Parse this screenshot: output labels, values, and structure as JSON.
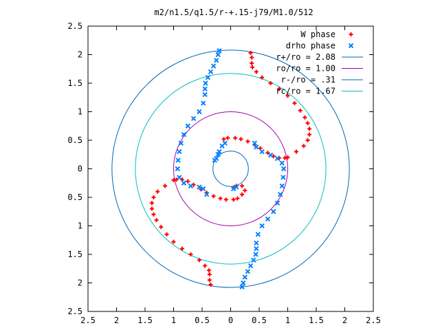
{
  "chart_data": {
    "type": "scatter",
    "title": "m2/n1.5/q1.5/r-+.15-j79/M1.0/512",
    "xlim": [
      -2.5,
      2.5
    ],
    "ylim": [
      -2.5,
      2.5
    ],
    "x_ticks": [
      -2.5,
      -2,
      -1.5,
      -1,
      -0.5,
      0,
      0.5,
      1,
      1.5,
      2,
      2.5
    ],
    "y_ticks": [
      -2.5,
      -2,
      -1.5,
      -1,
      -0.5,
      0,
      0.5,
      1,
      1.5,
      2,
      2.5
    ],
    "x_tick_labels": [
      "2.5",
      "2",
      "1.5",
      "1",
      "0.5",
      "0",
      "0.5",
      "1",
      "1.5",
      "2",
      "2.5"
    ],
    "y_tick_labels": [
      "2.5",
      "2",
      "1.5",
      "1",
      "0.5",
      "0",
      "0.5",
      "1",
      "1.5",
      "2",
      "2.5"
    ],
    "grid": false,
    "legend_position": "top-right",
    "series": [
      {
        "name": "W phase",
        "marker": "plus",
        "color": "#ff0000",
        "points": [
          [
            0.35,
            2.03
          ],
          [
            0.37,
            1.95
          ],
          [
            0.37,
            1.85
          ],
          [
            0.38,
            1.78
          ],
          [
            0.45,
            1.7
          ],
          [
            0.55,
            1.6
          ],
          [
            0.7,
            1.5
          ],
          [
            0.85,
            1.4
          ],
          [
            1.0,
            1.28
          ],
          [
            1.12,
            1.15
          ],
          [
            1.22,
            1.02
          ],
          [
            1.3,
            0.9
          ],
          [
            1.35,
            0.8
          ],
          [
            1.38,
            0.7
          ],
          [
            1.38,
            0.6
          ],
          [
            1.35,
            0.5
          ],
          [
            1.28,
            0.4
          ],
          [
            1.15,
            0.3
          ],
          [
            1.0,
            0.2
          ],
          [
            0.95,
            0.19
          ],
          [
            0.85,
            0.19
          ],
          [
            0.75,
            0.22
          ],
          [
            0.65,
            0.28
          ],
          [
            0.52,
            0.36
          ],
          [
            0.42,
            0.42
          ],
          [
            0.3,
            0.48
          ],
          [
            0.18,
            0.52
          ],
          [
            0.08,
            0.54
          ],
          [
            -0.05,
            0.54
          ],
          [
            -0.12,
            0.52
          ],
          [
            -0.35,
            -2.03
          ],
          [
            -0.37,
            -1.95
          ],
          [
            -0.37,
            -1.85
          ],
          [
            -0.38,
            -1.78
          ],
          [
            -0.45,
            -1.7
          ],
          [
            -0.55,
            -1.6
          ],
          [
            -0.7,
            -1.5
          ],
          [
            -0.85,
            -1.4
          ],
          [
            -1.0,
            -1.28
          ],
          [
            -1.12,
            -1.15
          ],
          [
            -1.22,
            -1.02
          ],
          [
            -1.3,
            -0.9
          ],
          [
            -1.35,
            -0.8
          ],
          [
            -1.38,
            -0.7
          ],
          [
            -1.38,
            -0.6
          ],
          [
            -1.35,
            -0.5
          ],
          [
            -1.28,
            -0.4
          ],
          [
            -1.15,
            -0.3
          ],
          [
            -1.0,
            -0.2
          ],
          [
            -0.95,
            -0.19
          ],
          [
            -0.85,
            -0.19
          ],
          [
            -0.75,
            -0.22
          ],
          [
            -0.65,
            -0.28
          ],
          [
            -0.52,
            -0.36
          ],
          [
            -0.42,
            -0.42
          ],
          [
            -0.3,
            -0.48
          ],
          [
            -0.18,
            -0.52
          ],
          [
            -0.08,
            -0.54
          ],
          [
            0.05,
            -0.54
          ],
          [
            0.12,
            -0.52
          ],
          [
            0.2,
            -0.45
          ],
          [
            0.25,
            -0.38
          ],
          [
            0.2,
            -0.3
          ],
          [
            0.1,
            -0.3
          ],
          [
            0.05,
            -0.33
          ]
        ]
      },
      {
        "name": "drho phase",
        "marker": "cross",
        "color": "#0080ff",
        "points": [
          [
            -0.2,
            2.07
          ],
          [
            -0.22,
            2.0
          ],
          [
            -0.25,
            1.9
          ],
          [
            -0.3,
            1.8
          ],
          [
            -0.35,
            1.7
          ],
          [
            -0.4,
            1.6
          ],
          [
            -0.44,
            1.5
          ],
          [
            -0.45,
            1.4
          ],
          [
            -0.45,
            1.3
          ],
          [
            -0.48,
            1.15
          ],
          [
            -0.55,
            1.0
          ],
          [
            -0.65,
            0.88
          ],
          [
            -0.75,
            0.75
          ],
          [
            -0.82,
            0.6
          ],
          [
            -0.87,
            0.45
          ],
          [
            -0.9,
            0.3
          ],
          [
            -0.92,
            0.15
          ],
          [
            -0.93,
            0.0
          ],
          [
            -0.9,
            -0.15
          ],
          [
            -0.82,
            -0.25
          ],
          [
            -0.7,
            -0.3
          ],
          [
            -0.55,
            -0.32
          ],
          [
            -0.48,
            -0.35
          ],
          [
            -0.42,
            -0.45
          ],
          [
            0.2,
            -2.07
          ],
          [
            0.22,
            -2.0
          ],
          [
            0.25,
            -1.9
          ],
          [
            0.3,
            -1.8
          ],
          [
            0.35,
            -1.7
          ],
          [
            0.4,
            -1.6
          ],
          [
            0.44,
            -1.5
          ],
          [
            0.45,
            -1.4
          ],
          [
            0.45,
            -1.3
          ],
          [
            0.48,
            -1.15
          ],
          [
            0.55,
            -1.0
          ],
          [
            0.65,
            -0.88
          ],
          [
            0.75,
            -0.75
          ],
          [
            0.82,
            -0.6
          ],
          [
            0.87,
            -0.45
          ],
          [
            0.9,
            -0.3
          ],
          [
            0.92,
            -0.15
          ],
          [
            0.93,
            0.0
          ],
          [
            0.9,
            0.1
          ],
          [
            0.82,
            0.18
          ],
          [
            0.7,
            0.24
          ],
          [
            0.55,
            0.3
          ],
          [
            0.45,
            0.38
          ],
          [
            0.42,
            0.45
          ],
          [
            -0.1,
            0.45
          ],
          [
            -0.15,
            0.4
          ],
          [
            -0.2,
            0.3
          ],
          [
            -0.22,
            0.25
          ],
          [
            -0.25,
            0.18
          ],
          [
            -0.28,
            0.15
          ],
          [
            0.05,
            -0.35
          ],
          [
            0.1,
            -0.32
          ]
        ]
      },
      {
        "name": "r+/ro = 2.08",
        "kind": "circle",
        "radius": 2.08,
        "color": "#0066b3"
      },
      {
        "name": "ro/ro = 1.00",
        "kind": "circle",
        "radius": 1.0,
        "color": "#a000a0"
      },
      {
        "name": "r-/ro = .31",
        "kind": "circle",
        "radius": 0.31,
        "color": "#0066b3"
      },
      {
        "name": "rc/ro = 1.67",
        "kind": "circle",
        "radius": 1.67,
        "color": "#00c0c0"
      }
    ]
  }
}
